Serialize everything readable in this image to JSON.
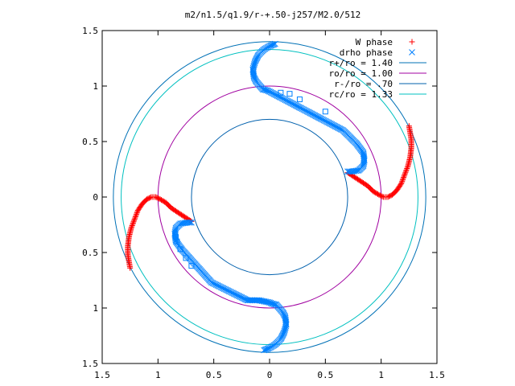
{
  "chart_data": {
    "type": "scatter",
    "title": "m2/n1.5/q1.9/r-+.50-j257/M2.0/512",
    "xlabel": "",
    "ylabel": "",
    "xlim": [
      -1.5,
      1.5
    ],
    "ylim": [
      -1.5,
      1.5
    ],
    "aspect": "equal",
    "grid": false,
    "legend_position": "top-right",
    "x_ticks": [
      {
        "value": -1.5,
        "label": "1.5"
      },
      {
        "value": -1.0,
        "label": "1"
      },
      {
        "value": -0.5,
        "label": "0.5"
      },
      {
        "value": 0.0,
        "label": "0"
      },
      {
        "value": 0.5,
        "label": "0.5"
      },
      {
        "value": 1.0,
        "label": "1"
      },
      {
        "value": 1.5,
        "label": "1.5"
      }
    ],
    "y_ticks": [
      {
        "value": 1.5,
        "label": "1.5"
      },
      {
        "value": 1.0,
        "label": "1"
      },
      {
        "value": 0.5,
        "label": "0.5"
      },
      {
        "value": 0.0,
        "label": "0"
      },
      {
        "value": -0.5,
        "label": "0.5"
      },
      {
        "value": -1.0,
        "label": "1"
      },
      {
        "value": -1.5,
        "label": "1.5"
      }
    ],
    "circles": [
      {
        "name": "r+/ro = 1.40",
        "radius": 1.4,
        "color": "#0071b6"
      },
      {
        "name": "ro/ro = 1.00",
        "radius": 1.0,
        "color": "#a000a0"
      },
      {
        "name": "r-/ro = .70",
        "radius": 0.7,
        "color": "#0060ad"
      },
      {
        "name": "rc/ro = 1.33",
        "radius": 1.33,
        "color": "#00c0c0"
      }
    ],
    "scatter_series": [
      {
        "name": "W phase",
        "marker": "plus",
        "color": "#ff0000",
        "points": [
          [
            0.7,
            0.22
          ],
          [
            0.76,
            0.18
          ],
          [
            0.82,
            0.14
          ],
          [
            0.88,
            0.1
          ],
          [
            0.93,
            0.05
          ],
          [
            0.98,
            0.02
          ],
          [
            1.02,
            0.0
          ],
          [
            1.06,
            0.0
          ],
          [
            1.1,
            0.02
          ],
          [
            1.14,
            0.06
          ],
          [
            1.18,
            0.12
          ],
          [
            1.21,
            0.2
          ],
          [
            1.24,
            0.28
          ],
          [
            1.26,
            0.36
          ],
          [
            1.27,
            0.44
          ],
          [
            1.27,
            0.52
          ],
          [
            1.26,
            0.58
          ],
          [
            1.25,
            0.64
          ],
          [
            -0.7,
            -0.22
          ],
          [
            -0.76,
            -0.18
          ],
          [
            -0.82,
            -0.14
          ],
          [
            -0.88,
            -0.1
          ],
          [
            -0.93,
            -0.05
          ],
          [
            -0.98,
            -0.02
          ],
          [
            -1.02,
            0.0
          ],
          [
            -1.06,
            0.0
          ],
          [
            -1.1,
            -0.02
          ],
          [
            -1.14,
            -0.06
          ],
          [
            -1.18,
            -0.12
          ],
          [
            -1.21,
            -0.2
          ],
          [
            -1.24,
            -0.28
          ],
          [
            -1.26,
            -0.36
          ],
          [
            -1.27,
            -0.44
          ],
          [
            -1.27,
            -0.52
          ],
          [
            -1.26,
            -0.58
          ],
          [
            -1.25,
            -0.64
          ]
        ]
      },
      {
        "name": "drho phase",
        "marker": "cross",
        "color": "#0080ff",
        "points": [
          [
            0.05,
            1.38
          ],
          [
            0.0,
            1.36
          ],
          [
            -0.05,
            1.33
          ],
          [
            -0.1,
            1.28
          ],
          [
            -0.13,
            1.22
          ],
          [
            -0.15,
            1.15
          ],
          [
            -0.14,
            1.08
          ],
          [
            -0.12,
            1.04
          ],
          [
            -0.06,
            0.97
          ],
          [
            -0.02,
            0.96
          ],
          [
            0.0,
            0.95
          ],
          [
            0.66,
            0.6
          ],
          [
            0.78,
            0.48
          ],
          [
            0.84,
            0.4
          ],
          [
            0.85,
            0.33
          ],
          [
            0.84,
            0.28
          ],
          [
            0.8,
            0.24
          ],
          [
            0.74,
            0.23
          ],
          [
            0.7,
            0.23
          ],
          [
            -0.05,
            -1.38
          ],
          [
            0.0,
            -1.36
          ],
          [
            0.05,
            -1.33
          ],
          [
            0.1,
            -1.28
          ],
          [
            0.13,
            -1.22
          ],
          [
            0.15,
            -1.15
          ],
          [
            0.14,
            -1.08
          ],
          [
            0.12,
            -1.04
          ],
          [
            0.06,
            -0.97
          ],
          [
            0.02,
            -0.96
          ],
          [
            0.0,
            -0.95
          ],
          [
            -0.1,
            -0.93
          ],
          [
            -0.2,
            -0.93
          ],
          [
            -0.3,
            -0.88
          ],
          [
            -0.52,
            -0.77
          ],
          [
            -0.78,
            -0.48
          ],
          [
            -0.84,
            -0.4
          ],
          [
            -0.85,
            -0.33
          ],
          [
            -0.84,
            -0.28
          ],
          [
            -0.8,
            -0.24
          ],
          [
            -0.74,
            -0.23
          ],
          [
            -0.7,
            -0.23
          ]
        ]
      },
      {
        "name": "",
        "marker": "square",
        "color": "#0080ff",
        "points": [
          [
            0.1,
            0.94
          ],
          [
            0.18,
            0.93
          ],
          [
            0.27,
            0.88
          ],
          [
            0.5,
            0.77
          ],
          [
            -0.7,
            -0.62
          ],
          [
            -0.75,
            -0.55
          ],
          [
            -0.8,
            -0.47
          ],
          [
            -0.83,
            -0.4
          ],
          [
            -0.84,
            -0.36
          ]
        ]
      }
    ]
  }
}
